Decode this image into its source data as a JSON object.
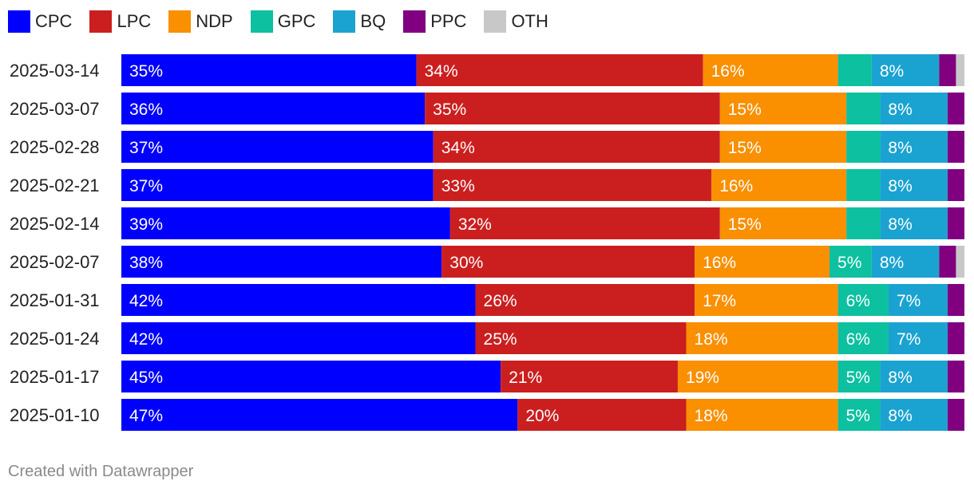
{
  "chart_data": {
    "type": "bar",
    "orientation": "horizontal",
    "stacked": true,
    "categories": [
      "2025-03-14",
      "2025-03-07",
      "2025-02-28",
      "2025-02-21",
      "2025-02-14",
      "2025-02-07",
      "2025-01-31",
      "2025-01-24",
      "2025-01-17",
      "2025-01-10"
    ],
    "series": [
      {
        "name": "CPC",
        "color": "#0000fe",
        "values": [
          35,
          36,
          37,
          37,
          39,
          38,
          42,
          42,
          45,
          47
        ],
        "labels": [
          "35%",
          "36%",
          "37%",
          "37%",
          "39%",
          "38%",
          "42%",
          "42%",
          "45%",
          "47%"
        ]
      },
      {
        "name": "LPC",
        "color": "#cb1f1f",
        "values": [
          34,
          35,
          34,
          33,
          32,
          30,
          26,
          25,
          21,
          20
        ],
        "labels": [
          "34%",
          "35%",
          "34%",
          "33%",
          "32%",
          "30%",
          "26%",
          "25%",
          "21%",
          "20%"
        ]
      },
      {
        "name": "NDP",
        "color": "#fa8f00",
        "values": [
          16,
          15,
          15,
          16,
          15,
          16,
          17,
          18,
          19,
          18
        ],
        "labels": [
          "16%",
          "15%",
          "15%",
          "16%",
          "15%",
          "16%",
          "17%",
          "18%",
          "19%",
          "18%"
        ]
      },
      {
        "name": "GPC",
        "color": "#0cc0a0",
        "values": [
          4,
          4,
          4,
          4,
          4,
          5,
          6,
          6,
          5,
          5
        ],
        "labels": [
          "",
          "",
          "",
          "",
          "",
          "5%",
          "6%",
          "6%",
          "5%",
          "5%"
        ]
      },
      {
        "name": "BQ",
        "color": "#1aa3d1",
        "values": [
          8,
          8,
          8,
          8,
          8,
          8,
          7,
          7,
          8,
          8
        ],
        "labels": [
          "8%",
          "8%",
          "8%",
          "8%",
          "8%",
          "8%",
          "7%",
          "7%",
          "8%",
          "8%"
        ]
      },
      {
        "name": "PPC",
        "color": "#800080",
        "values": [
          2,
          2,
          2,
          2,
          2,
          2,
          2,
          2,
          2,
          2
        ],
        "labels": [
          "",
          "",
          "",
          "",
          "",
          "",
          "",
          "",
          "",
          ""
        ]
      },
      {
        "name": "OTH",
        "color": "#c8c8c8",
        "values": [
          1,
          0,
          0,
          0,
          0,
          1,
          0,
          0,
          0,
          0
        ],
        "labels": [
          "",
          "",
          "",
          "",
          "",
          "",
          "",
          "",
          "",
          ""
        ]
      }
    ],
    "xlim": [
      0,
      100
    ],
    "grid": false,
    "legend_position": "top-left"
  },
  "credit": "Created with Datawrapper"
}
